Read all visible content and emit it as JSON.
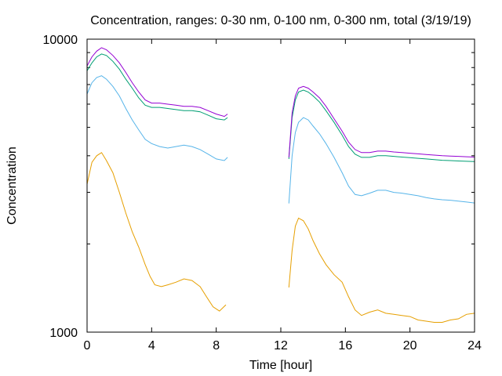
{
  "chart_data": {
    "type": "line",
    "title": "Concentration, ranges: 0-30 nm, 0-100 nm, 0-300 nm, total (3/19/19)",
    "xlabel": "Time [hour]",
    "ylabel": "Concentration",
    "xlim": [
      0,
      24
    ],
    "ylim": [
      1000,
      10000
    ],
    "yscale": "log",
    "grid": false,
    "legend": "none",
    "x_ticks": [
      "0",
      "4",
      "8",
      "12",
      "16",
      "20",
      "24"
    ],
    "y_tick_labels": [
      "1000",
      "10000"
    ],
    "series": [
      {
        "color": "#e69f00",
        "x": [
          0,
          0.3,
          0.6,
          0.9,
          1.2,
          1.6,
          2.0,
          2.4,
          2.8,
          3.2,
          3.6,
          3.9,
          4.2,
          4.6,
          5.0,
          5.5,
          6.0,
          6.5,
          7.0,
          7.4,
          7.8,
          8.2,
          8.6,
          12.5,
          12.7,
          12.9,
          13.1,
          13.4,
          13.7,
          14.0,
          14.4,
          14.8,
          15.3,
          15.8,
          16.2,
          16.6,
          17.0,
          17.5,
          18.0,
          18.5,
          19.0,
          19.5,
          20.0,
          20.5,
          21.0,
          21.5,
          22.0,
          22.5,
          23.0,
          23.5,
          24.0
        ],
        "values": [
          3200,
          3800,
          4000,
          4100,
          3850,
          3500,
          3000,
          2550,
          2200,
          1950,
          1700,
          1550,
          1450,
          1430,
          1450,
          1480,
          1520,
          1500,
          1430,
          1320,
          1220,
          1180,
          1240,
          1420,
          1900,
          2300,
          2450,
          2400,
          2250,
          2050,
          1850,
          1700,
          1570,
          1480,
          1320,
          1190,
          1140,
          1170,
          1190,
          1160,
          1150,
          1140,
          1130,
          1100,
          1090,
          1080,
          1080,
          1100,
          1110,
          1150,
          1160
        ]
      },
      {
        "color": "#56b4e9",
        "x": [
          0,
          0.3,
          0.6,
          0.9,
          1.2,
          1.6,
          2.0,
          2.4,
          2.8,
          3.2,
          3.6,
          4.0,
          4.5,
          5.0,
          5.5,
          6.0,
          6.5,
          7.0,
          7.5,
          8.0,
          8.5,
          8.7,
          12.5,
          12.7,
          12.9,
          13.1,
          13.4,
          13.7,
          14.0,
          14.4,
          14.8,
          15.3,
          15.8,
          16.2,
          16.6,
          17.0,
          17.5,
          18.0,
          18.5,
          19.0,
          19.5,
          20.0,
          20.5,
          21.0,
          21.5,
          22.0,
          22.5,
          23.0,
          23.5,
          24.0
        ],
        "values": [
          6500,
          7100,
          7400,
          7500,
          7300,
          6900,
          6400,
          5800,
          5300,
          4900,
          4550,
          4400,
          4300,
          4250,
          4300,
          4350,
          4300,
          4200,
          4050,
          3900,
          3850,
          3950,
          2750,
          4000,
          4800,
          5200,
          5400,
          5300,
          5050,
          4750,
          4400,
          3950,
          3500,
          3150,
          2950,
          2920,
          2980,
          3050,
          3050,
          3000,
          2980,
          2950,
          2920,
          2880,
          2850,
          2830,
          2820,
          2800,
          2780,
          2760
        ]
      },
      {
        "color": "#009e73",
        "x": [
          0,
          0.3,
          0.6,
          0.9,
          1.2,
          1.6,
          2.0,
          2.4,
          2.8,
          3.2,
          3.6,
          4.0,
          4.5,
          5.0,
          5.5,
          6.0,
          6.5,
          7.0,
          7.5,
          8.0,
          8.5,
          8.7,
          12.5,
          12.7,
          12.9,
          13.1,
          13.4,
          13.7,
          14.0,
          14.4,
          14.8,
          15.3,
          15.8,
          16.2,
          16.6,
          17.0,
          17.5,
          18.0,
          18.5,
          19.0,
          19.5,
          20.0,
          20.5,
          21.0,
          21.5,
          22.0,
          22.5,
          23.0,
          23.5,
          24.0
        ],
        "values": [
          7800,
          8300,
          8700,
          8900,
          8800,
          8400,
          7900,
          7300,
          6800,
          6300,
          5950,
          5850,
          5850,
          5800,
          5750,
          5700,
          5700,
          5650,
          5500,
          5350,
          5300,
          5400,
          3900,
          5400,
          6200,
          6600,
          6700,
          6600,
          6400,
          6100,
          5700,
          5200,
          4700,
          4300,
          4050,
          3950,
          3950,
          4000,
          4000,
          3980,
          3960,
          3940,
          3920,
          3900,
          3880,
          3860,
          3850,
          3840,
          3830,
          3820
        ]
      },
      {
        "color": "#9400d3",
        "x": [
          0,
          0.3,
          0.6,
          0.9,
          1.2,
          1.6,
          2.0,
          2.4,
          2.8,
          3.2,
          3.6,
          4.0,
          4.5,
          5.0,
          5.5,
          6.0,
          6.5,
          7.0,
          7.5,
          8.0,
          8.5,
          8.7,
          12.5,
          12.7,
          12.9,
          13.1,
          13.4,
          13.7,
          14.0,
          14.4,
          14.8,
          15.3,
          15.8,
          16.2,
          16.6,
          17.0,
          17.5,
          18.0,
          18.5,
          19.0,
          19.5,
          20.0,
          20.5,
          21.0,
          21.5,
          22.0,
          22.5,
          23.0,
          23.5,
          24.0
        ],
        "values": [
          8100,
          8700,
          9100,
          9350,
          9200,
          8800,
          8300,
          7700,
          7100,
          6600,
          6200,
          6050,
          6050,
          6000,
          5950,
          5900,
          5900,
          5850,
          5700,
          5550,
          5450,
          5550,
          3950,
          5600,
          6400,
          6800,
          6900,
          6800,
          6600,
          6300,
          5900,
          5350,
          4850,
          4450,
          4200,
          4100,
          4100,
          4150,
          4150,
          4120,
          4100,
          4080,
          4060,
          4040,
          4020,
          4000,
          3990,
          3980,
          3970,
          3960
        ]
      }
    ]
  }
}
